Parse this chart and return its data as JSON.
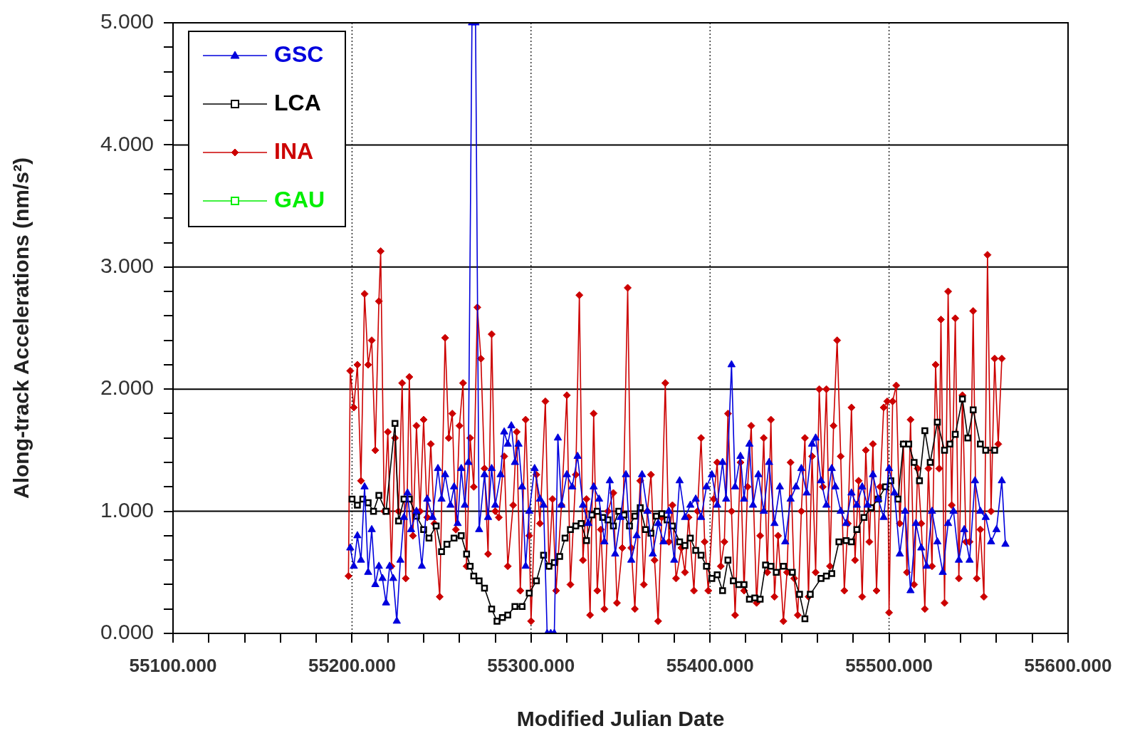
{
  "chart_data": {
    "type": "line",
    "xlabel": "Modified Julian Date",
    "ylabel": "Along-track Accelerations (nm/s²)",
    "xlim": [
      55100,
      55600
    ],
    "ylim": [
      0,
      5
    ],
    "xticks": [
      {
        "value": 55100,
        "label": "55100.000"
      },
      {
        "value": 55120,
        "label": null
      },
      {
        "value": 55140,
        "label": null
      },
      {
        "value": 55160,
        "label": null
      },
      {
        "value": 55180,
        "label": null
      },
      {
        "value": 55200,
        "label": "55200.000"
      },
      {
        "value": 55220,
        "label": null
      },
      {
        "value": 55240,
        "label": null
      },
      {
        "value": 55260,
        "label": null
      },
      {
        "value": 55280,
        "label": null
      },
      {
        "value": 55300,
        "label": "55300.000"
      },
      {
        "value": 55320,
        "label": null
      },
      {
        "value": 55340,
        "label": null
      },
      {
        "value": 55360,
        "label": null
      },
      {
        "value": 55380,
        "label": null
      },
      {
        "value": 55400,
        "label": "55400.000"
      },
      {
        "value": 55420,
        "label": null
      },
      {
        "value": 55440,
        "label": null
      },
      {
        "value": 55460,
        "label": null
      },
      {
        "value": 55480,
        "label": null
      },
      {
        "value": 55500,
        "label": "55500.000"
      },
      {
        "value": 55520,
        "label": null
      },
      {
        "value": 55540,
        "label": null
      },
      {
        "value": 55560,
        "label": null
      },
      {
        "value": 55580,
        "label": null
      },
      {
        "value": 55600,
        "label": "55600.000"
      }
    ],
    "yticks": [
      {
        "value": 0,
        "label": "0.000"
      },
      {
        "value": 0.2,
        "label": null
      },
      {
        "value": 0.4,
        "label": null
      },
      {
        "value": 0.6,
        "label": null
      },
      {
        "value": 0.8,
        "label": null
      },
      {
        "value": 1,
        "label": "1.000"
      },
      {
        "value": 1.2,
        "label": null
      },
      {
        "value": 1.4,
        "label": null
      },
      {
        "value": 1.6,
        "label": null
      },
      {
        "value": 1.8,
        "label": null
      },
      {
        "value": 2,
        "label": "2.000"
      },
      {
        "value": 2.2,
        "label": null
      },
      {
        "value": 2.4,
        "label": null
      },
      {
        "value": 2.6,
        "label": null
      },
      {
        "value": 2.8,
        "label": null
      },
      {
        "value": 3,
        "label": "3.000"
      },
      {
        "value": 3.2,
        "label": null
      },
      {
        "value": 3.4,
        "label": null
      },
      {
        "value": 3.6,
        "label": null
      },
      {
        "value": 3.8,
        "label": null
      },
      {
        "value": 4,
        "label": "4.000"
      },
      {
        "value": 4.2,
        "label": null
      },
      {
        "value": 4.4,
        "label": null
      },
      {
        "value": 4.6,
        "label": null
      },
      {
        "value": 4.8,
        "label": null
      },
      {
        "value": 5,
        "label": "5.000"
      }
    ],
    "grid": true,
    "legend": "top left",
    "series": [
      {
        "name": "GSC",
        "color": "#0000dd",
        "marker": "triangle",
        "x": [
          55199,
          55201,
          55203,
          55205,
          55207,
          55209,
          55211,
          55213,
          55215,
          55217,
          55219,
          55221,
          55223,
          55225,
          55227,
          55229,
          55231,
          55233,
          55236,
          55239,
          55242,
          55245,
          55248,
          55250,
          55252,
          55255,
          55257,
          55259,
          55261,
          55263,
          55265,
          55267,
          55269,
          55271,
          55274,
          55276,
          55278,
          55280,
          55283,
          55285,
          55287,
          55289,
          55291,
          55293,
          55295,
          55297,
          55299,
          55302,
          55305,
          55307,
          55309,
          55311,
          55313,
          55315,
          55317,
          55320,
          55323,
          55326,
          55329,
          55332,
          55335,
          55338,
          55341,
          55344,
          55347,
          55350,
          55353,
          55356,
          55359,
          55362,
          55365,
          55368,
          55371,
          55374,
          55377,
          55380,
          55383,
          55386,
          55389,
          55392,
          55395,
          55398,
          55401,
          55404,
          55407,
          55409,
          55412,
          55414,
          55417,
          55419,
          55422,
          55424,
          55427,
          55430,
          55433,
          55436,
          55439,
          55442,
          55445,
          55448,
          55451,
          55454,
          55457,
          55459,
          55462,
          55465,
          55468,
          55470,
          55473,
          55476,
          55479,
          55482,
          55485,
          55488,
          55491,
          55494,
          55497,
          55500,
          55503,
          55506,
          55509,
          55512,
          55515,
          55518,
          55521,
          55524,
          55527,
          55530,
          55533,
          55536,
          55539,
          55542,
          55545,
          55548,
          55551,
          55554,
          55557,
          55560,
          55563,
          55565
        ],
        "values": [
          0.7,
          0.55,
          0.8,
          0.6,
          1.2,
          0.5,
          0.85,
          0.4,
          0.55,
          0.45,
          0.25,
          0.55,
          0.45,
          0.1,
          0.6,
          0.95,
          1.15,
          0.85,
          1.0,
          0.55,
          1.1,
          0.95,
          1.35,
          1.1,
          1.3,
          1.05,
          1.2,
          0.9,
          1.35,
          1.05,
          1.4,
          5.0,
          5.0,
          0.85,
          1.3,
          0.95,
          1.35,
          1.05,
          1.3,
          1.65,
          1.55,
          1.7,
          1.4,
          1.55,
          1.2,
          0.55,
          1.0,
          1.35,
          1.1,
          1.05,
          0.0,
          0.0,
          0.0,
          1.6,
          1.05,
          1.3,
          1.2,
          1.45,
          1.05,
          0.9,
          1.2,
          1.1,
          0.75,
          1.25,
          0.65,
          0.95,
          1.3,
          0.6,
          0.8,
          1.3,
          1.0,
          0.65,
          0.9,
          0.75,
          1.0,
          0.6,
          1.25,
          0.95,
          1.05,
          1.1,
          0.95,
          1.2,
          1.3,
          1.05,
          1.4,
          1.1,
          2.2,
          1.2,
          1.45,
          1.1,
          1.55,
          1.05,
          1.3,
          1.0,
          1.4,
          0.9,
          1.2,
          0.75,
          1.1,
          1.2,
          1.35,
          1.15,
          1.55,
          1.6,
          1.25,
          1.05,
          1.35,
          1.2,
          1.0,
          0.9,
          1.15,
          1.05,
          1.2,
          1.05,
          1.3,
          1.1,
          0.95,
          1.35,
          1.15,
          0.65,
          1.0,
          0.35,
          0.9,
          0.7,
          0.55,
          1.0,
          0.75,
          0.5,
          0.9,
          1.0,
          0.6,
          0.85,
          0.6,
          1.25,
          1.0,
          0.95,
          0.75,
          0.85,
          1.25,
          0.73
        ]
      },
      {
        "name": "LCA",
        "color": "#000000",
        "marker": "square",
        "x": [
          55200,
          55203,
          55206,
          55209,
          55212,
          55215,
          55219,
          55224,
          55226,
          55229,
          55232,
          55236,
          55240,
          55243,
          55247,
          55250,
          55253,
          55257,
          55261,
          55264,
          55266,
          55268,
          55271,
          55274,
          55278,
          55281,
          55284,
          55287,
          55291,
          55295,
          55299,
          55303,
          55307,
          55310,
          55313,
          55316,
          55319,
          55322,
          55325,
          55328,
          55331,
          55334,
          55337,
          55340,
          55343,
          55346,
          55349,
          55352,
          55355,
          55358,
          55361,
          55364,
          55367,
          55370,
          55373,
          55376,
          55379,
          55383,
          55386,
          55389,
          55392,
          55395,
          55398,
          55401,
          55404,
          55407,
          55410,
          55413,
          55416,
          55419,
          55422,
          55425,
          55428,
          55431,
          55434,
          55437,
          55441,
          55446,
          55450,
          55453,
          55456,
          55462,
          55465,
          55468,
          55472,
          55476,
          55479,
          55482,
          55486,
          55490,
          55494,
          55498,
          55501,
          55505,
          55508,
          55511,
          55514,
          55517,
          55520,
          55523,
          55527,
          55531,
          55534,
          55537,
          55541,
          55544,
          55547,
          55551,
          55554,
          55559
        ],
        "values": [
          1.1,
          1.05,
          1.1,
          1.07,
          1.0,
          1.13,
          1.0,
          1.72,
          0.92,
          1.1,
          1.1,
          0.96,
          0.85,
          0.78,
          0.88,
          0.67,
          0.73,
          0.78,
          0.8,
          0.65,
          0.55,
          0.47,
          0.43,
          0.37,
          0.2,
          0.1,
          0.13,
          0.15,
          0.22,
          0.22,
          0.33,
          0.43,
          0.64,
          0.55,
          0.58,
          0.63,
          0.78,
          0.85,
          0.88,
          0.9,
          0.76,
          0.97,
          1.0,
          0.95,
          0.93,
          0.88,
          1.0,
          0.97,
          0.88,
          0.96,
          1.03,
          0.85,
          0.82,
          0.96,
          0.98,
          0.93,
          0.88,
          0.75,
          0.72,
          0.78,
          0.68,
          0.64,
          0.55,
          0.45,
          0.48,
          0.35,
          0.6,
          0.43,
          0.4,
          0.4,
          0.28,
          0.29,
          0.28,
          0.56,
          0.55,
          0.5,
          0.55,
          0.5,
          0.32,
          0.12,
          0.32,
          0.45,
          0.47,
          0.49,
          0.75,
          0.76,
          0.75,
          0.85,
          0.95,
          1.03,
          1.1,
          1.2,
          1.25,
          1.1,
          1.55,
          1.55,
          1.4,
          1.25,
          1.66,
          1.4,
          1.73,
          1.5,
          1.55,
          1.63,
          1.92,
          1.6,
          1.83,
          1.55,
          1.5,
          1.5
        ]
      },
      {
        "name": "INA",
        "color": "#cc0000",
        "marker": "diamond",
        "x": [
          55198,
          55199,
          55201,
          55203,
          55205,
          55207,
          55209,
          55211,
          55213,
          55215,
          55216,
          55218,
          55220,
          55222,
          55224,
          55226,
          55228,
          55230,
          55232,
          55234,
          55236,
          55238,
          55240,
          55242,
          55244,
          55246,
          55249,
          55252,
          55254,
          55256,
          55258,
          55260,
          55262,
          55264,
          55266,
          55268,
          55270,
          55272,
          55274,
          55276,
          55278,
          55280,
          55282,
          55285,
          55287,
          55290,
          55292,
          55294,
          55297,
          55299,
          55300,
          55303,
          55305,
          55308,
          55310,
          55312,
          55314,
          55317,
          55320,
          55322,
          55325,
          55327,
          55329,
          55331,
          55333,
          55335,
          55337,
          55339,
          55341,
          55343,
          55346,
          55348,
          55351,
          55354,
          55356,
          55358,
          55361,
          55363,
          55365,
          55367,
          55369,
          55371,
          55373,
          55375,
          55377,
          55379,
          55381,
          55384,
          55386,
          55388,
          55391,
          55393,
          55395,
          55397,
          55399,
          55402,
          55404,
          55406,
          55408,
          55410,
          55412,
          55414,
          55417,
          55419,
          55421,
          55423,
          55426,
          55428,
          55430,
          55432,
          55434,
          55436,
          55438,
          55441,
          55443,
          55445,
          55447,
          55449,
          55451,
          55453,
          55455,
          55457,
          55459,
          55461,
          55463,
          55465,
          55467,
          55469,
          55471,
          55473,
          55475,
          55477,
          55479,
          55481,
          55483,
          55485,
          55487,
          55489,
          55491,
          55493,
          55495,
          55497,
          55499,
          55500,
          55502,
          55504,
          55506,
          55508,
          55510,
          55512,
          55514,
          55516,
          55518,
          55520,
          55522,
          55524,
          55526,
          55528,
          55529,
          55531,
          55533,
          55535,
          55537,
          55539,
          55541,
          55543,
          55545,
          55547,
          55549,
          55551,
          55553,
          55555,
          55557,
          55559,
          55561,
          55563
        ],
        "values": [
          0.47,
          2.15,
          1.85,
          2.2,
          1.25,
          2.78,
          2.2,
          2.4,
          1.5,
          2.72,
          3.13,
          1.0,
          1.65,
          0.55,
          1.6,
          1.0,
          2.05,
          0.45,
          2.1,
          0.8,
          1.7,
          1.0,
          1.75,
          0.95,
          1.55,
          0.9,
          0.3,
          2.42,
          1.6,
          1.8,
          0.85,
          1.7,
          2.05,
          0.55,
          1.6,
          1.2,
          2.67,
          2.25,
          1.35,
          0.65,
          2.45,
          1.0,
          0.95,
          1.45,
          0.55,
          1.05,
          1.65,
          0.35,
          1.75,
          0.8,
          0.1,
          1.3,
          0.9,
          1.9,
          0.55,
          1.1,
          0.35,
          1.05,
          1.95,
          0.4,
          1.3,
          2.77,
          0.6,
          1.1,
          0.15,
          1.8,
          0.35,
          0.85,
          0.2,
          1.0,
          1.15,
          0.25,
          0.7,
          2.83,
          0.7,
          0.2,
          1.25,
          0.4,
          1.0,
          1.3,
          0.6,
          0.1,
          0.95,
          2.05,
          0.75,
          1.05,
          0.45,
          0.7,
          0.5,
          0.95,
          0.35,
          1.0,
          1.6,
          0.75,
          0.35,
          1.1,
          1.4,
          0.55,
          0.75,
          1.8,
          1.0,
          0.15,
          1.4,
          0.35,
          1.2,
          1.7,
          0.25,
          0.8,
          1.6,
          0.5,
          1.75,
          0.3,
          0.8,
          0.1,
          0.5,
          1.4,
          0.45,
          0.15,
          1.0,
          1.6,
          0.3,
          1.45,
          0.5,
          2.0,
          1.2,
          2.0,
          0.55,
          1.7,
          2.4,
          1.45,
          0.35,
          0.9,
          1.85,
          0.6,
          1.25,
          0.3,
          1.5,
          0.75,
          1.55,
          0.35,
          1.2,
          1.85,
          1.9,
          0.17,
          1.9,
          2.03,
          0.9,
          1.55,
          0.5,
          1.75,
          0.4,
          1.35,
          0.9,
          0.2,
          1.35,
          0.55,
          2.2,
          1.35,
          2.57,
          0.25,
          2.8,
          1.05,
          2.58,
          0.45,
          1.95,
          0.75,
          0.75,
          2.64,
          0.45,
          0.85,
          0.3,
          3.1,
          1.0,
          2.25,
          1.55,
          2.25
        ]
      },
      {
        "name": "GAU",
        "color": "#00ee00",
        "marker": "square"
      }
    ]
  }
}
